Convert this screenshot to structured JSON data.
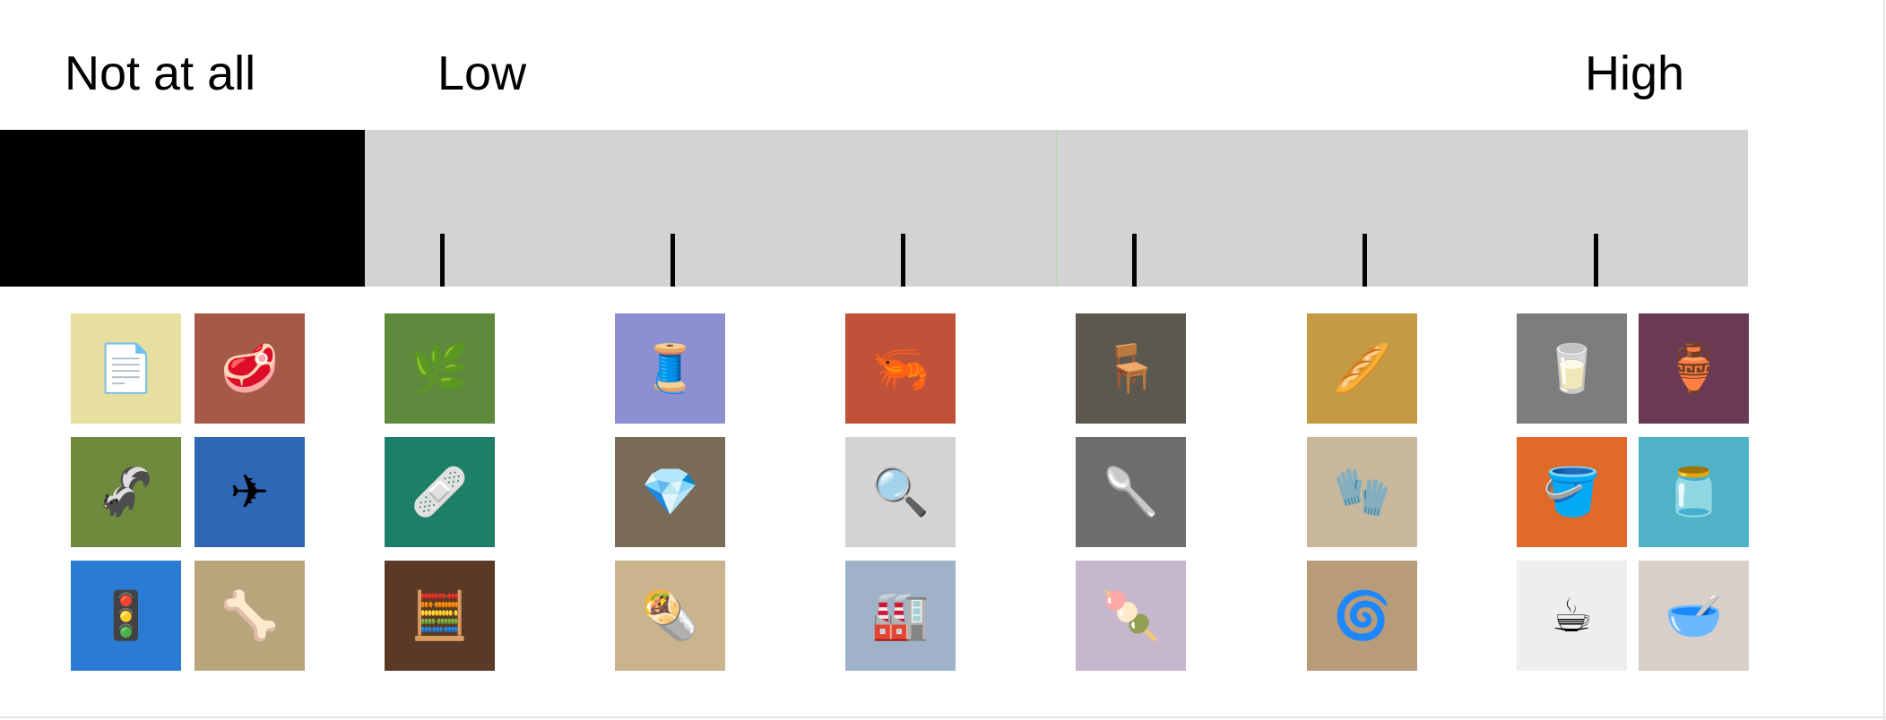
{
  "scale": {
    "labels": {
      "not_at_all": "Not at all",
      "low": "Low",
      "high": "High"
    },
    "colors": {
      "not_at_all_segment": "#000000",
      "scale_segment": "#d3d3d3",
      "tick": "#000000"
    },
    "tick_count": 6
  },
  "image_groups": [
    {
      "group": "not-at-all",
      "images": [
        {
          "name": "papers-image",
          "icon": "papers-icon",
          "glyph": "📄",
          "bg": "#e6dfa0"
        },
        {
          "name": "meat-loaf-image",
          "icon": "meat-icon",
          "glyph": "🥩",
          "bg": "#a55a48"
        },
        {
          "name": "skunk-image",
          "icon": "skunk-icon",
          "glyph": "🦨",
          "bg": "#6f8a3c"
        },
        {
          "name": "airplane-wing-image",
          "icon": "airplane-icon",
          "glyph": "✈",
          "bg": "#2f67b5"
        },
        {
          "name": "traffic-light-image",
          "icon": "traffic-light-icon",
          "glyph": "🚦",
          "bg": "#2a7bd3"
        },
        {
          "name": "skeleton-fossil-image",
          "icon": "bone-icon",
          "glyph": "🦴",
          "bg": "#b9a57c"
        }
      ]
    },
    {
      "group": "scale-position-1",
      "images": [
        {
          "name": "herbs-image",
          "icon": "herb-icon",
          "glyph": "🌿",
          "bg": "#5f8a3e"
        },
        {
          "name": "arm-sling-image",
          "icon": "sling-icon",
          "glyph": "🩹",
          "bg": "#1d7f66"
        },
        {
          "name": "abacus-image",
          "icon": "abacus-icon",
          "glyph": "🧮",
          "bg": "#5a3a26"
        }
      ]
    },
    {
      "group": "scale-position-2",
      "images": [
        {
          "name": "fabric-texture-image",
          "icon": "fabric-icon",
          "glyph": "🧵",
          "bg": "#8c8fd0"
        },
        {
          "name": "gemstones-image",
          "icon": "gem-icon",
          "glyph": "💎",
          "bg": "#7a6a58"
        },
        {
          "name": "burrito-image",
          "icon": "burrito-icon",
          "glyph": "🌯",
          "bg": "#c9b48e"
        }
      ]
    },
    {
      "group": "scale-position-3",
      "images": [
        {
          "name": "shrimp-image",
          "icon": "shrimp-icon",
          "glyph": "🦐",
          "bg": "#c0523a"
        },
        {
          "name": "magnifying-glass-image",
          "icon": "magnifier-icon",
          "glyph": "🔍",
          "bg": "#d4d2d4"
        },
        {
          "name": "chimney-image",
          "icon": "chimney-icon",
          "glyph": "🏭",
          "bg": "#9fb2c8"
        }
      ]
    },
    {
      "group": "scale-position-4",
      "images": [
        {
          "name": "high-chair-image",
          "icon": "chair-icon",
          "glyph": "🪑",
          "bg": "#5d584f"
        },
        {
          "name": "glass-stirrers-image",
          "icon": "stirrer-icon",
          "glyph": "🥄",
          "bg": "#6d6d6d"
        },
        {
          "name": "popsicles-image",
          "icon": "popsicle-icon",
          "glyph": "🍡",
          "bg": "#c7b7cc"
        }
      ]
    },
    {
      "group": "scale-position-5",
      "images": [
        {
          "name": "rolling-pins-image",
          "icon": "rolling-pin-icon",
          "glyph": "🥖",
          "bg": "#c49a45"
        },
        {
          "name": "glove-image",
          "icon": "glove-icon",
          "glyph": "🧤",
          "bg": "#c8b89b"
        },
        {
          "name": "glass-sculpture-image",
          "icon": "glass-icon",
          "glyph": "🌀",
          "bg": "#b89c79"
        }
      ]
    },
    {
      "group": "high",
      "images": [
        {
          "name": "measuring-cup-image",
          "icon": "measuring-cup-icon",
          "glyph": "🥛",
          "bg": "#7d7d7d"
        },
        {
          "name": "purple-pitcher-image",
          "icon": "pitcher-icon",
          "glyph": "🏺",
          "bg": "#6a3a55"
        },
        {
          "name": "orange-bucket-image",
          "icon": "bucket-icon",
          "glyph": "🪣",
          "bg": "#e06a2a"
        },
        {
          "name": "mason-jar-image",
          "icon": "jar-icon",
          "glyph": "🫙",
          "bg": "#4fb2c7"
        },
        {
          "name": "teacup-image",
          "icon": "teacup-icon",
          "glyph": "☕",
          "bg": "#eeeeee"
        },
        {
          "name": "bowl-image",
          "icon": "bowl-icon",
          "glyph": "🥣",
          "bg": "#d8d0c8"
        }
      ]
    }
  ]
}
